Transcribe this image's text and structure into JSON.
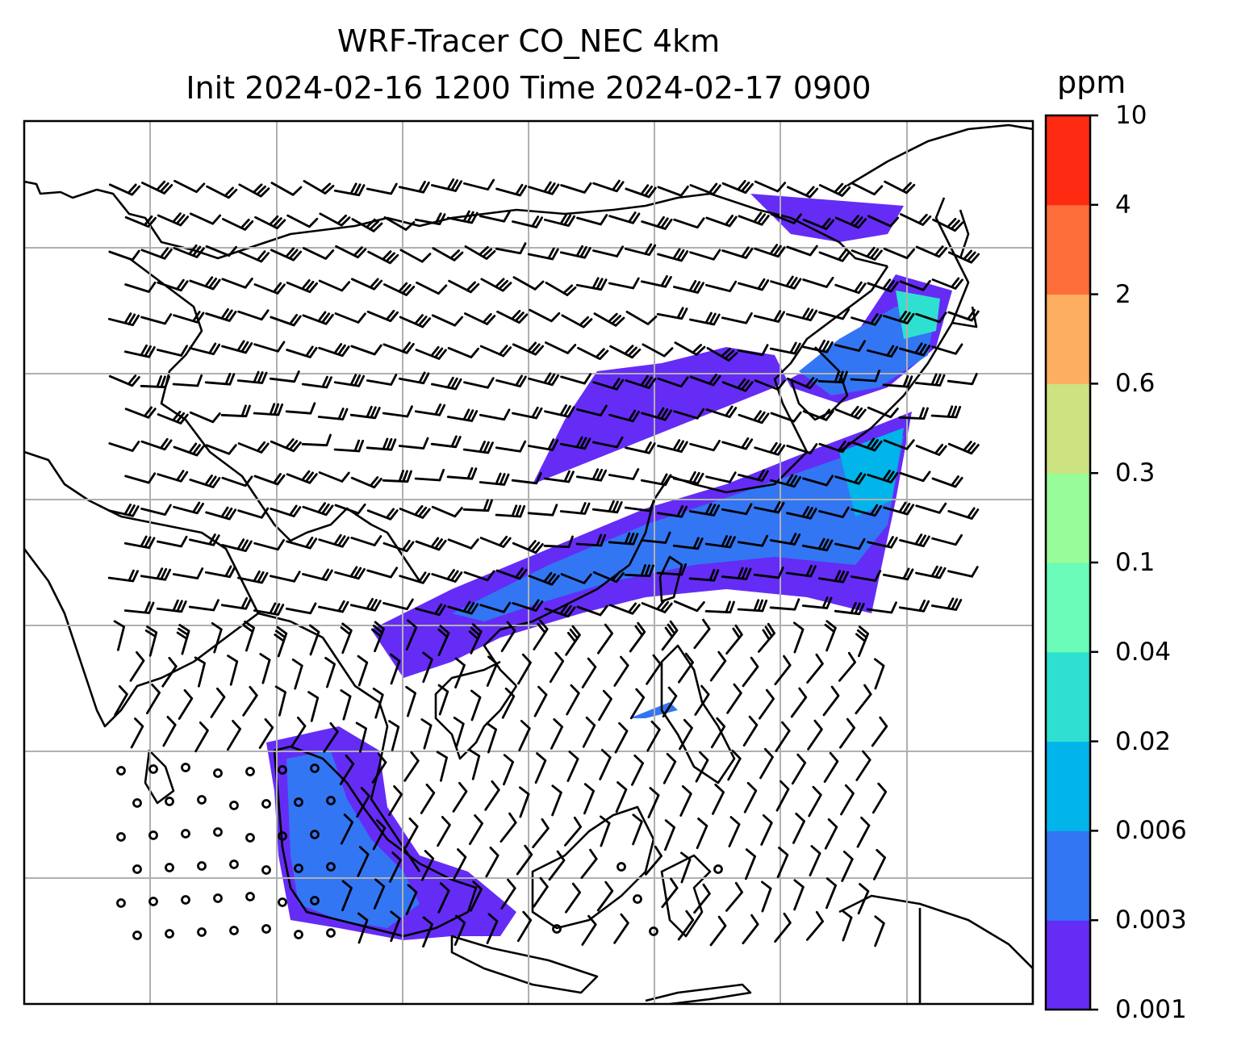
{
  "title": {
    "line1": "WRF-Tracer CO_NEC 4km",
    "line2": "Init 2024-02-16 1200 Time 2024-02-17 0900"
  },
  "colorbar": {
    "unit": "ppm",
    "levels": [
      "0.001",
      "0.003",
      "0.006",
      "0.02",
      "0.04",
      "0.1",
      "0.3",
      "0.6",
      "2",
      "4",
      "10"
    ],
    "colors": [
      "#652cf6",
      "#3276f4",
      "#01b4ea",
      "#2ee0d0",
      "#6afcb8",
      "#98fc98",
      "#cde280",
      "#fdae60",
      "#fd6e3a",
      "#ff2a12"
    ]
  },
  "map": {
    "gridlines": true,
    "coastline_color": "#000000",
    "wind_barb_color": "#000000",
    "plume_levels_shown": [
      "0.001",
      "0.003",
      "0.006",
      "0.02",
      "0.04"
    ]
  }
}
